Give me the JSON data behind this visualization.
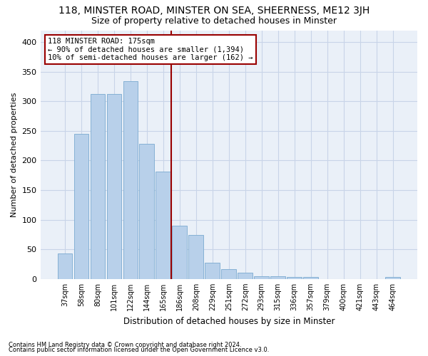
{
  "title1": "118, MINSTER ROAD, MINSTER ON SEA, SHEERNESS, ME12 3JH",
  "title2": "Size of property relative to detached houses in Minster",
  "xlabel": "Distribution of detached houses by size in Minster",
  "ylabel": "Number of detached properties",
  "categories": [
    "37sqm",
    "58sqm",
    "80sqm",
    "101sqm",
    "122sqm",
    "144sqm",
    "165sqm",
    "186sqm",
    "208sqm",
    "229sqm",
    "251sqm",
    "272sqm",
    "293sqm",
    "315sqm",
    "336sqm",
    "357sqm",
    "379sqm",
    "400sqm",
    "421sqm",
    "443sqm",
    "464sqm"
  ],
  "values": [
    43,
    245,
    312,
    312,
    334,
    228,
    181,
    90,
    74,
    27,
    17,
    10,
    4,
    5,
    3,
    3,
    0,
    0,
    0,
    0,
    3
  ],
  "bar_color": "#b8d0ea",
  "bar_edge_color": "#7aaad0",
  "vline_color": "#990000",
  "annotation_text": "118 MINSTER ROAD: 175sqm\n← 90% of detached houses are smaller (1,394)\n10% of semi-detached houses are larger (162) →",
  "annotation_box_color": "#ffffff",
  "annotation_box_edge": "#990000",
  "footer1": "Contains HM Land Registry data © Crown copyright and database right 2024.",
  "footer2": "Contains public sector information licensed under the Open Government Licence v3.0.",
  "bg_color": "#ffffff",
  "plot_bg_color": "#eaf0f8",
  "grid_color": "#c8d4e8",
  "title1_fontsize": 10,
  "title2_fontsize": 9,
  "ylim": [
    0,
    420
  ],
  "yticks": [
    0,
    50,
    100,
    150,
    200,
    250,
    300,
    350,
    400
  ],
  "vline_bar_index": 7
}
